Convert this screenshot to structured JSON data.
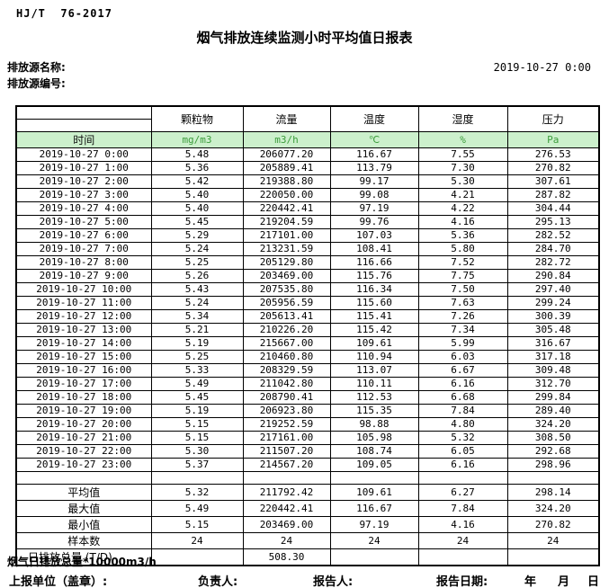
{
  "meta": {
    "standard": "HJ/T  76-2017",
    "title": "烟气排放连续监测小时平均值日报表",
    "source_name_label": "排放源名称:",
    "source_code_label": "排放源编号:",
    "report_datetime": "2019-10-27 0:00"
  },
  "table": {
    "time_header": "时间",
    "columns": [
      {
        "label": "颗粒物",
        "unit": "mg/m3"
      },
      {
        "label": "流量",
        "unit": "m3/h"
      },
      {
        "label": "温度",
        "unit": "℃"
      },
      {
        "label": "湿度",
        "unit": "%"
      },
      {
        "label": "压力",
        "unit": "Pa"
      }
    ],
    "rows": [
      {
        "time": "2019-10-27 0:00",
        "values": [
          "5.48",
          "206077.20",
          "116.67",
          "7.55",
          "276.53"
        ]
      },
      {
        "time": "2019-10-27 1:00",
        "values": [
          "5.36",
          "205889.41",
          "113.79",
          "7.30",
          "270.82"
        ]
      },
      {
        "time": "2019-10-27 2:00",
        "values": [
          "5.42",
          "219388.80",
          "99.17",
          "5.30",
          "307.61"
        ]
      },
      {
        "time": "2019-10-27 3:00",
        "values": [
          "5.40",
          "220050.00",
          "99.08",
          "4.21",
          "287.82"
        ]
      },
      {
        "time": "2019-10-27 4:00",
        "values": [
          "5.40",
          "220442.41",
          "97.19",
          "4.22",
          "304.44"
        ]
      },
      {
        "time": "2019-10-27 5:00",
        "values": [
          "5.45",
          "219204.59",
          "99.76",
          "4.16",
          "295.13"
        ]
      },
      {
        "time": "2019-10-27 6:00",
        "values": [
          "5.29",
          "217101.00",
          "107.03",
          "5.36",
          "282.52"
        ]
      },
      {
        "time": "2019-10-27 7:00",
        "values": [
          "5.24",
          "213231.59",
          "108.41",
          "5.80",
          "284.70"
        ]
      },
      {
        "time": "2019-10-27 8:00",
        "values": [
          "5.25",
          "205129.80",
          "116.66",
          "7.52",
          "282.72"
        ]
      },
      {
        "time": "2019-10-27 9:00",
        "values": [
          "5.26",
          "203469.00",
          "115.76",
          "7.75",
          "290.84"
        ]
      },
      {
        "time": "2019-10-27 10:00",
        "values": [
          "5.43",
          "207535.80",
          "116.34",
          "7.50",
          "297.40"
        ]
      },
      {
        "time": "2019-10-27 11:00",
        "values": [
          "5.24",
          "205956.59",
          "115.60",
          "7.63",
          "299.24"
        ]
      },
      {
        "time": "2019-10-27 12:00",
        "values": [
          "5.34",
          "205613.41",
          "115.41",
          "7.26",
          "300.39"
        ]
      },
      {
        "time": "2019-10-27 13:00",
        "values": [
          "5.21",
          "210226.20",
          "115.42",
          "7.34",
          "305.48"
        ]
      },
      {
        "time": "2019-10-27 14:00",
        "values": [
          "5.19",
          "215667.00",
          "109.61",
          "5.99",
          "316.67"
        ]
      },
      {
        "time": "2019-10-27 15:00",
        "values": [
          "5.25",
          "210460.80",
          "110.94",
          "6.03",
          "317.18"
        ]
      },
      {
        "time": "2019-10-27 16:00",
        "values": [
          "5.33",
          "208329.59",
          "113.07",
          "6.67",
          "309.48"
        ]
      },
      {
        "time": "2019-10-27 17:00",
        "values": [
          "5.49",
          "211042.80",
          "110.11",
          "6.16",
          "312.70"
        ]
      },
      {
        "time": "2019-10-27 18:00",
        "values": [
          "5.45",
          "208790.41",
          "112.53",
          "6.68",
          "299.84"
        ]
      },
      {
        "time": "2019-10-27 19:00",
        "values": [
          "5.19",
          "206923.80",
          "115.35",
          "7.84",
          "289.40"
        ]
      },
      {
        "time": "2019-10-27 20:00",
        "values": [
          "5.15",
          "219252.59",
          "98.88",
          "4.80",
          "324.20"
        ]
      },
      {
        "time": "2019-10-27 21:00",
        "values": [
          "5.15",
          "217161.00",
          "105.98",
          "5.32",
          "308.50"
        ]
      },
      {
        "time": "2019-10-27 22:00",
        "values": [
          "5.30",
          "211507.20",
          "108.74",
          "6.05",
          "292.68"
        ]
      },
      {
        "time": "2019-10-27 23:00",
        "values": [
          "5.37",
          "214567.20",
          "109.05",
          "6.16",
          "298.96"
        ]
      }
    ],
    "summary": [
      {
        "label": "平均值",
        "values": [
          "5.32",
          "211792.42",
          "109.61",
          "6.27",
          "298.14"
        ]
      },
      {
        "label": "最大值",
        "values": [
          "5.49",
          "220442.41",
          "116.67",
          "7.84",
          "324.20"
        ]
      },
      {
        "label": "最小值",
        "values": [
          "5.15",
          "203469.00",
          "97.19",
          "4.16",
          "270.82"
        ]
      },
      {
        "label": "样本数",
        "values": [
          "24",
          "24",
          "24",
          "24",
          "24"
        ]
      },
      {
        "label": "日排放总量 (T/D)",
        "values": [
          "",
          "508.30",
          "",
          "",
          ""
        ]
      }
    ]
  },
  "footer": {
    "note": "烟气日排放总量*10000m3/h",
    "unit_label": "上报单位（盖章）:",
    "responsible_label": "负责人:",
    "reporter_label": "报告人:",
    "report_date_label": "报告日期:",
    "year_label": "年",
    "month_label": "月",
    "day_label": "日"
  },
  "colors": {
    "unit_row_bg": "#CCF0CC",
    "unit_text": "#3C9C3C",
    "border": "#000000"
  }
}
